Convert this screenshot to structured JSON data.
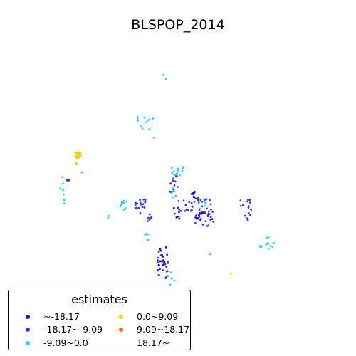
{
  "title": "BLSPOP_2014",
  "legend": {
    "title": "estimates",
    "entries": [
      {
        "label": "~-18.17",
        "color": "#2a00d4"
      },
      {
        "label": "-18.17~-9.09",
        "color": "#3333ee"
      },
      {
        "label": "-9.09~0.0",
        "color": "#33ccee"
      },
      {
        "label": "0.0~9.09",
        "color": "#ffcc00"
      },
      {
        "label": "9.09~18.17",
        "color": "#ff6611"
      },
      {
        "label": "18.17~",
        "color": "#ffffff"
      }
    ]
  },
  "chart_data": {
    "type": "scatter",
    "title": "BLSPOP_2014",
    "legend_title": "estimates",
    "legend_position": "bottom-left",
    "axes_visible": false,
    "classes": [
      "~-18.17",
      "-18.17~-9.09",
      "-9.09~0.0",
      "0.0~9.09",
      "9.09~18.17",
      "18.17~"
    ],
    "clusters": [
      {
        "class": 2,
        "center": [
          234,
          107
        ],
        "spread": [
          8,
          4
        ],
        "count": 2
      },
      {
        "class": 2,
        "center": [
          205,
          178
        ],
        "spread": [
          12,
          16
        ],
        "count": 12
      },
      {
        "class": 2,
        "center": [
          248,
          240
        ],
        "spread": [
          10,
          6
        ],
        "count": 14
      },
      {
        "class": 2,
        "center": [
          88,
          270
        ],
        "spread": [
          4,
          22
        ],
        "count": 9
      },
      {
        "class": 2,
        "center": [
          172,
          290
        ],
        "spread": [
          6,
          8
        ],
        "count": 12
      },
      {
        "class": 2,
        "center": [
          152,
          305
        ],
        "spread": [
          1,
          3
        ],
        "count": 3
      },
      {
        "class": 2,
        "center": [
          285,
          290
        ],
        "spread": [
          6,
          12
        ],
        "count": 8
      },
      {
        "class": 2,
        "center": [
          205,
          332
        ],
        "spread": [
          4,
          6
        ],
        "count": 4
      },
      {
        "class": 2,
        "center": [
          245,
          270
        ],
        "spread": [
          4,
          10
        ],
        "count": 6
      },
      {
        "class": 2,
        "center": [
          375,
          342
        ],
        "spread": [
          10,
          9
        ],
        "count": 12
      },
      {
        "class": 2,
        "center": [
          240,
          390
        ],
        "spread": [
          6,
          10
        ],
        "count": 5
      },
      {
        "class": 2,
        "center": [
          295,
          357
        ],
        "spread": [
          1,
          1
        ],
        "count": 1
      },
      {
        "class": 1,
        "center": [
          95,
          253
        ],
        "spread": [
          3,
          2
        ],
        "count": 5
      },
      {
        "class": 1,
        "center": [
          198,
          290
        ],
        "spread": [
          8,
          10
        ],
        "count": 16
      },
      {
        "class": 1,
        "center": [
          245,
          260
        ],
        "spread": [
          6,
          15
        ],
        "count": 12
      },
      {
        "class": 1,
        "center": [
          285,
          298
        ],
        "spread": [
          15,
          20
        ],
        "count": 40
      },
      {
        "class": 1,
        "center": [
          260,
          290
        ],
        "spread": [
          12,
          10
        ],
        "count": 18
      },
      {
        "class": 1,
        "center": [
          345,
          295
        ],
        "spread": [
          8,
          15
        ],
        "count": 15
      },
      {
        "class": 1,
        "center": [
          228,
          372
        ],
        "spread": [
          8,
          20
        ],
        "count": 25
      },
      {
        "class": 1,
        "center": [
          210,
          305
        ],
        "spread": [
          4,
          6
        ],
        "count": 6
      },
      {
        "class": 0,
        "center": [
          228,
          360
        ],
        "spread": [
          6,
          15
        ],
        "count": 10
      },
      {
        "class": 0,
        "center": [
          248,
          300
        ],
        "spread": [
          4,
          8
        ],
        "count": 6
      },
      {
        "class": 0,
        "center": [
          272,
          275
        ],
        "spread": [
          6,
          6
        ],
        "count": 8
      },
      {
        "class": 0,
        "center": [
          280,
          305
        ],
        "spread": [
          6,
          6
        ],
        "count": 8
      },
      {
        "class": 3,
        "center": [
          110,
          218
        ],
        "spread": [
          4,
          4
        ],
        "count": 25
      },
      {
        "class": 3,
        "center": [
          108,
          228
        ],
        "spread": [
          2,
          4
        ],
        "count": 4
      },
      {
        "class": 3,
        "center": [
          325,
          384
        ],
        "spread": [
          1,
          1
        ],
        "count": 1
      },
      {
        "class": 4,
        "center": [
          115,
          243
        ],
        "spread": [
          1,
          1
        ],
        "count": 1
      }
    ]
  }
}
